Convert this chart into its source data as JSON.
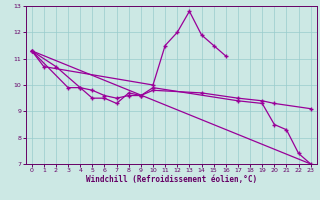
{
  "xlabel": "Windchill (Refroidissement éolien,°C)",
  "background_color": "#cce8e4",
  "line_color": "#990099",
  "xlim": [
    -0.5,
    23.5
  ],
  "ylim": [
    7,
    13
  ],
  "yticks": [
    7,
    8,
    9,
    10,
    11,
    12,
    13
  ],
  "xticks": [
    0,
    1,
    2,
    3,
    4,
    5,
    6,
    7,
    8,
    9,
    10,
    11,
    12,
    13,
    14,
    15,
    16,
    17,
    18,
    19,
    20,
    21,
    22,
    23
  ],
  "series1_x": [
    0,
    1,
    10,
    11,
    12,
    13,
    14,
    15,
    16
  ],
  "series1_y": [
    11.3,
    10.7,
    10.0,
    11.5,
    12.0,
    12.8,
    11.9,
    11.5,
    11.1
  ],
  "series2_x": [
    0,
    3,
    4,
    5,
    6,
    7,
    8,
    9,
    10,
    17,
    19,
    20,
    21,
    22,
    23
  ],
  "series2_y": [
    11.3,
    9.9,
    9.9,
    9.5,
    9.5,
    9.3,
    9.7,
    9.6,
    9.9,
    9.4,
    9.3,
    8.5,
    8.3,
    7.4,
    7.0
  ],
  "series3_x": [
    0,
    2,
    4,
    5,
    6,
    7,
    8,
    9,
    10,
    14,
    17,
    19,
    20,
    23
  ],
  "series3_y": [
    11.3,
    10.7,
    9.9,
    9.8,
    9.6,
    9.5,
    9.6,
    9.6,
    9.8,
    9.7,
    9.5,
    9.4,
    9.3,
    9.1
  ],
  "series4_x": [
    0,
    23
  ],
  "series4_y": [
    11.3,
    7.0
  ]
}
